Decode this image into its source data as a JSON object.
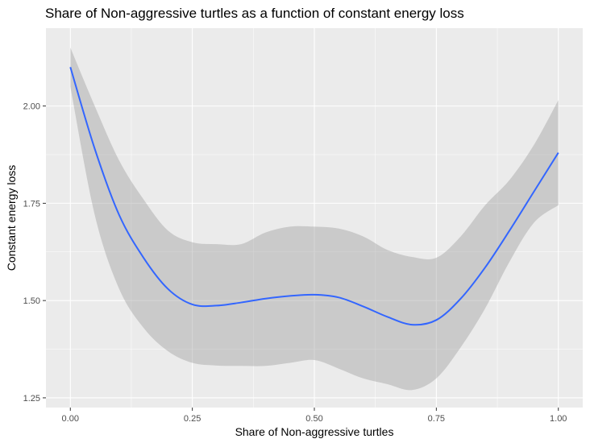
{
  "chart_data": {
    "type": "line",
    "title": "Share of Non-aggressive turtles as a function of constant energy loss",
    "xlabel": "Share of Non-aggressive turtles",
    "ylabel": "Constant energy loss",
    "xlim": [
      -0.05,
      1.05
    ],
    "ylim": [
      1.225,
      2.2
    ],
    "x_ticks": [
      0.0,
      0.25,
      0.5,
      0.75,
      1.0
    ],
    "x_tick_labels": [
      "0.00",
      "0.25",
      "0.50",
      "0.75",
      "1.00"
    ],
    "y_ticks": [
      1.25,
      1.5,
      1.75,
      2.0
    ],
    "y_tick_labels": [
      "1.25",
      "1.50",
      "1.75",
      "2.00"
    ],
    "grid": true,
    "colors": {
      "line": "#3366FF",
      "band": "#999999",
      "panel": "#EBEBEB",
      "grid": "#FFFFFF"
    },
    "series": [
      {
        "x": [
          0.0,
          0.05,
          0.1,
          0.15,
          0.2,
          0.25,
          0.3,
          0.35,
          0.4,
          0.45,
          0.5,
          0.55,
          0.6,
          0.65,
          0.7,
          0.75,
          0.8,
          0.85,
          0.9,
          0.95,
          1.0
        ],
        "y": [
          2.1,
          1.89,
          1.72,
          1.61,
          1.53,
          1.49,
          1.487,
          1.495,
          1.505,
          1.512,
          1.515,
          1.508,
          1.485,
          1.458,
          1.438,
          1.45,
          1.505,
          1.585,
          1.68,
          1.78,
          1.88
        ],
        "lower": [
          2.05,
          1.72,
          1.53,
          1.43,
          1.37,
          1.34,
          1.333,
          1.332,
          1.332,
          1.34,
          1.347,
          1.325,
          1.3,
          1.285,
          1.27,
          1.3,
          1.38,
          1.48,
          1.6,
          1.7,
          1.745
        ],
        "upper": [
          2.15,
          2.0,
          1.86,
          1.76,
          1.68,
          1.65,
          1.645,
          1.645,
          1.675,
          1.69,
          1.69,
          1.685,
          1.665,
          1.63,
          1.612,
          1.61,
          1.665,
          1.745,
          1.81,
          1.9,
          2.015
        ]
      }
    ]
  }
}
